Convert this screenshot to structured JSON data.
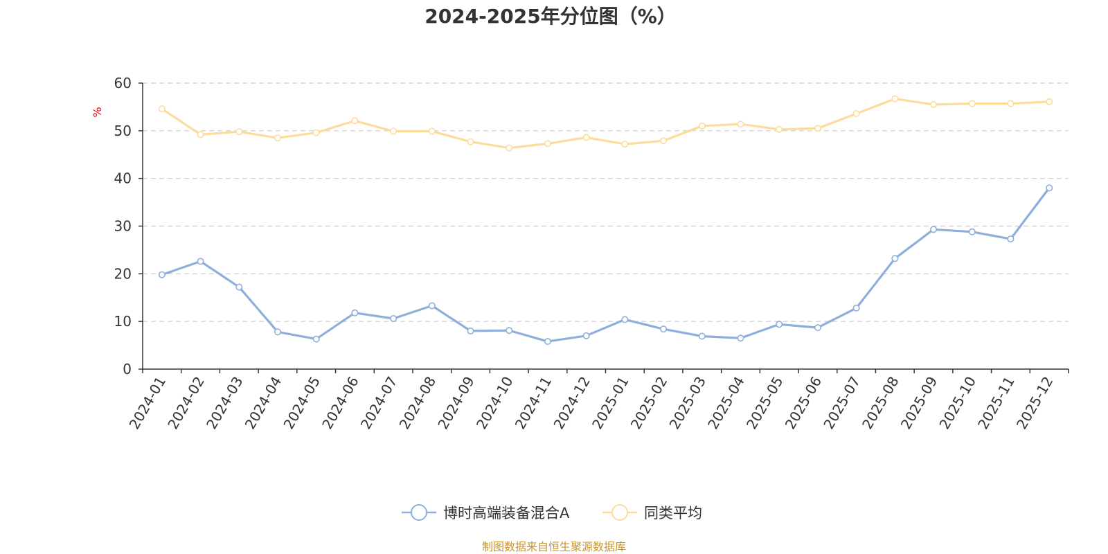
{
  "chart_data": {
    "type": "line",
    "title": "2024-2025年分位图（%）",
    "ylabel": "%",
    "xlabel": "",
    "ylim": [
      0,
      60
    ],
    "yticks": [
      0,
      10,
      20,
      30,
      40,
      50,
      60
    ],
    "categories": [
      "2024-01",
      "2024-02",
      "2024-03",
      "2024-04",
      "2024-05",
      "2024-06",
      "2024-07",
      "2024-08",
      "2024-09",
      "2024-10",
      "2024-11",
      "2024-12",
      "2025-01",
      "2025-02",
      "2025-03",
      "2025-04",
      "2025-05",
      "2025-06",
      "2025-07",
      "2025-08",
      "2025-09",
      "2025-10",
      "2025-11",
      "2025-12"
    ],
    "series": [
      {
        "name": "博时高端装备混合A",
        "color": "#8eaedb",
        "values": [
          19.8,
          22.6,
          17.2,
          7.8,
          6.3,
          11.8,
          10.6,
          13.3,
          8.0,
          8.1,
          5.8,
          7.0,
          10.4,
          8.4,
          6.9,
          6.5,
          9.4,
          8.7,
          12.8,
          23.2,
          29.3,
          28.8,
          27.3,
          38.0
        ]
      },
      {
        "name": "同类平均",
        "color": "#fddc9b",
        "values": [
          54.6,
          49.2,
          49.8,
          48.5,
          49.6,
          52.1,
          49.9,
          49.9,
          47.7,
          46.4,
          47.3,
          48.6,
          47.2,
          47.9,
          51.0,
          51.4,
          50.3,
          50.5,
          53.6,
          56.7,
          55.5,
          55.7,
          55.7,
          56.1
        ]
      }
    ],
    "grid": true,
    "legend_position": "bottom-center"
  },
  "colors": {
    "axis": "#333333",
    "grid": "#cccccc",
    "ylabel": "#ff0000",
    "source": "#c8962e"
  },
  "source_text": "制图数据来自恒生聚源数据库"
}
